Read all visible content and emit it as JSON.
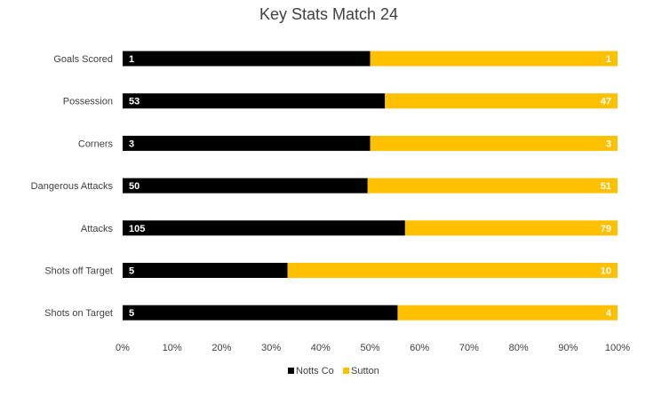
{
  "chart_data": {
    "type": "bar",
    "orientation": "horizontal",
    "stacking": "percent",
    "title": "Key Stats Match 24",
    "categories": [
      "Goals Scored",
      "Possession",
      "Corners",
      "Dangerous Attacks",
      "Attacks",
      "Shots off Target",
      "Shots on Target"
    ],
    "series": [
      {
        "name": "Notts Co",
        "color": "#000000",
        "values": [
          1,
          53,
          3,
          50,
          105,
          5,
          5
        ]
      },
      {
        "name": "Sutton",
        "color": "#FFC000",
        "values": [
          1,
          47,
          3,
          51,
          79,
          10,
          4
        ]
      }
    ],
    "xaxis": {
      "ticks": [
        "0%",
        "10%",
        "20%",
        "30%",
        "40%",
        "50%",
        "60%",
        "70%",
        "80%",
        "90%",
        "100%"
      ],
      "range": [
        0,
        100
      ]
    },
    "grid": false,
    "legend_position": "bottom"
  }
}
